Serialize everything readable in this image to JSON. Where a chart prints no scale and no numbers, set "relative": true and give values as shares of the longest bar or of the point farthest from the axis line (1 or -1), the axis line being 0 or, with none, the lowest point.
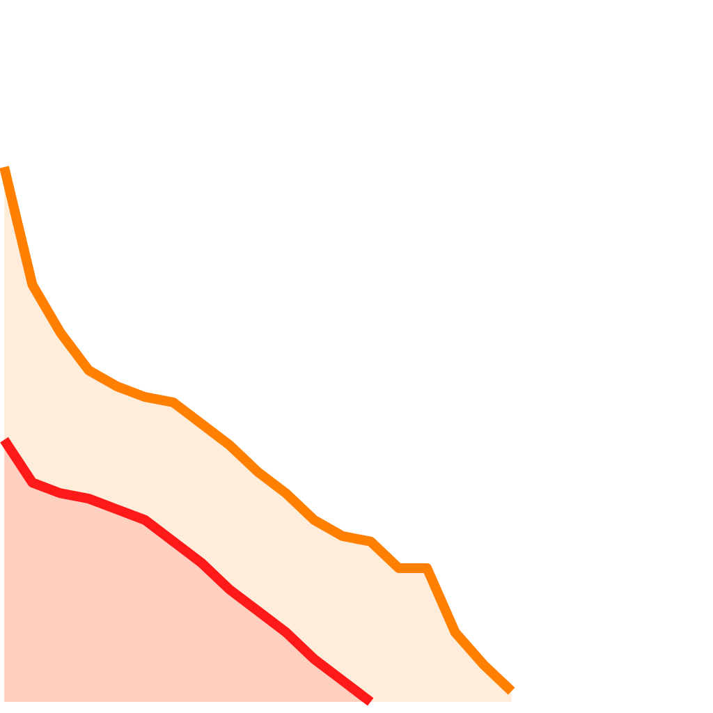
{
  "chart_data": {
    "type": "area",
    "relative": true,
    "categories": [
      null,
      null,
      null,
      null,
      null,
      null,
      null,
      null,
      null,
      null,
      null,
      null,
      null,
      null,
      null,
      null,
      null,
      null,
      null,
      null,
      null,
      null,
      null,
      null,
      null,
      null
    ],
    "series": [
      {
        "color": "#ff7f00",
        "values": [
          1,
          0.78,
          0.69,
          0.62,
          0.59,
          0.57,
          0.56,
          0.52,
          0.48,
          0.43,
          0.39,
          0.34,
          0.31,
          0.3,
          0.25,
          0.25,
          0.13,
          0.07,
          0.02,
          null,
          null,
          null,
          null,
          null,
          null,
          null
        ]
      },
      {
        "color": "#ff1a1a",
        "values": [
          0.49,
          0.41,
          0.39,
          0.38,
          0.36,
          0.34,
          0.3,
          0.26,
          0.21,
          0.17,
          0.13,
          0.08,
          0.04,
          0,
          null,
          null,
          null,
          null,
          null,
          null,
          null,
          null,
          null,
          null,
          null,
          null
        ]
      }
    ],
    "grid": false
  }
}
